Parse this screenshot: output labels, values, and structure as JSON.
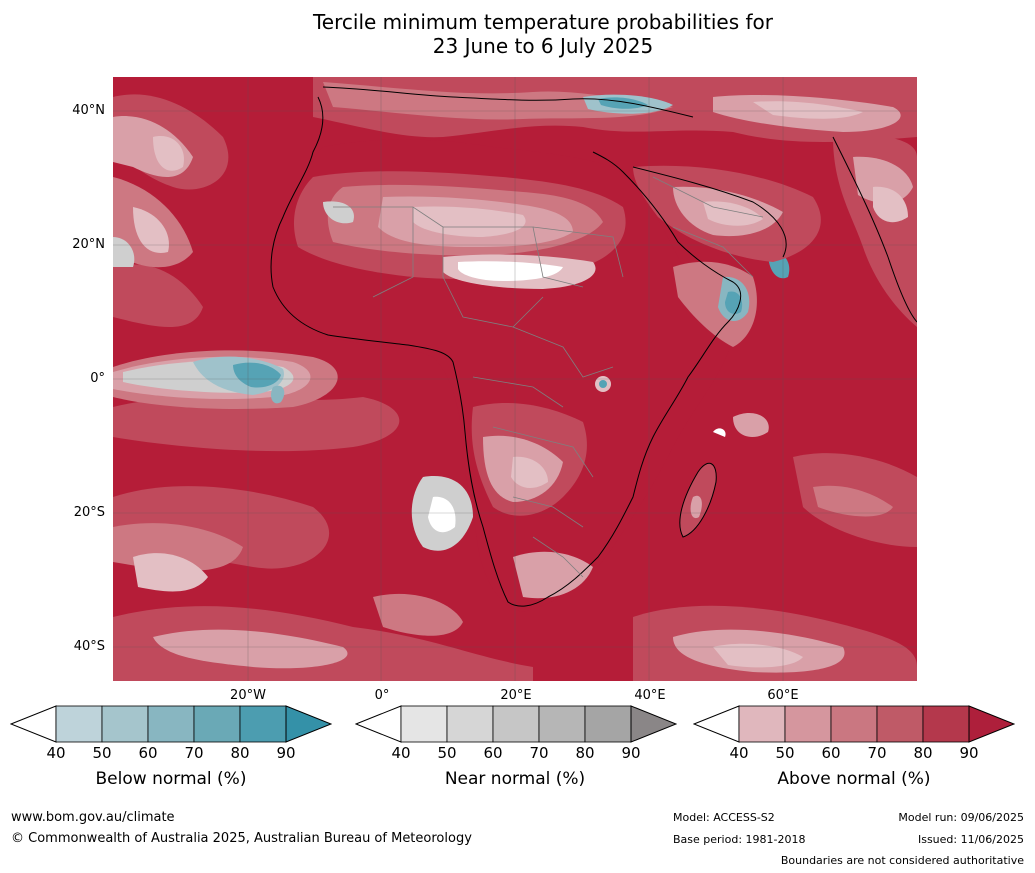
{
  "title": {
    "line1": "Tercile minimum temperature probabilities for",
    "line2": "23 June to 6 July 2025"
  },
  "map": {
    "lat_labels": [
      "40°N",
      "20°N",
      "0°",
      "20°S",
      "40°S"
    ],
    "lon_labels": [
      "20°W",
      "0°",
      "20°E",
      "40°E",
      "60°E"
    ],
    "colors": {
      "ocean_base": "#b51d38",
      "above_80": "#c04a5c",
      "above_70": "#cd7882",
      "above_60": "#d9a0a8",
      "above_50": "#e3bfc4",
      "near_normal": "#cfcfcf",
      "below_normal": "#56a3b5",
      "borders": "#7f7f7f",
      "coast": "#000000"
    }
  },
  "colorbars": {
    "below": {
      "label": "Below normal (%)",
      "ticks": [
        "40",
        "50",
        "60",
        "70",
        "80",
        "90"
      ],
      "colors": [
        "#bed3da",
        "#a5c5cc",
        "#88b6c1",
        "#6aa9b6",
        "#4c9db0",
        "#3491a8"
      ]
    },
    "near": {
      "label": "Near normal (%)",
      "ticks": [
        "40",
        "50",
        "60",
        "70",
        "80",
        "90"
      ],
      "colors": [
        "#e5e5e5",
        "#d6d6d6",
        "#c6c6c6",
        "#b6b6b6",
        "#a5a5a5",
        "#8a8687"
      ]
    },
    "above": {
      "label": "Above normal (%)",
      "ticks": [
        "40",
        "50",
        "60",
        "70",
        "80",
        "90"
      ],
      "colors": [
        "#e0b7bd",
        "#d5969e",
        "#ca7781",
        "#bf5a67",
        "#b4384c",
        "#ae1f3b"
      ]
    }
  },
  "footer": {
    "website": "www.bom.gov.au/climate",
    "copyright": "© Commonwealth of Australia 2025, Australian Bureau of Meteorology",
    "model": "Model: ACCESS-S2",
    "base_period": "Base period: 1981-2018",
    "model_run": "Model run: 09/06/2025",
    "issued": "Issued: 11/06/2025",
    "disclaimer": "Boundaries are not considered authoritative"
  }
}
